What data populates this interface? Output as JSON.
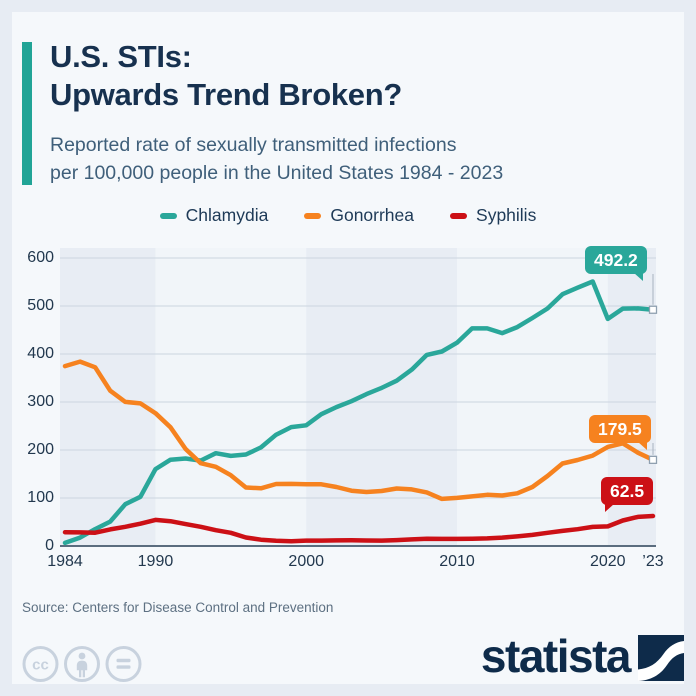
{
  "header": {
    "title_line1": "U.S. STIs:",
    "title_line2": "Upwards Trend Broken?",
    "subtitle_line1": "Reported rate of sexually transmitted infections",
    "subtitle_line2": "per 100,000 people in the United States 1984 - 2023"
  },
  "legend": [
    {
      "label": "Chlamydia",
      "color": "#2aa79a"
    },
    {
      "label": "Gonorrhea",
      "color": "#f6821f"
    },
    {
      "label": "Syphilis",
      "color": "#cc1016"
    }
  ],
  "chart_data": {
    "type": "line",
    "unit": "reported cases per 100,000 people",
    "x": [
      1984,
      1985,
      1986,
      1987,
      1988,
      1989,
      1990,
      1991,
      1992,
      1993,
      1994,
      1995,
      1996,
      1997,
      1998,
      1999,
      2000,
      2001,
      2002,
      2003,
      2004,
      2005,
      2006,
      2007,
      2008,
      2009,
      2010,
      2011,
      2012,
      2013,
      2014,
      2015,
      2016,
      2017,
      2018,
      2019,
      2020,
      2021,
      2022,
      2023
    ],
    "series": [
      {
        "name": "Chlamydia",
        "color": "#2aa79a",
        "end_label": "492.2",
        "values": [
          6.5,
          17.4,
          35.2,
          50.8,
          87.1,
          102.5,
          160.2,
          179.7,
          182.3,
          178.0,
          193.4,
          187.8,
          190.6,
          205.5,
          231.8,
          247.7,
          251.4,
          274.5,
          289.4,
          301.7,
          316.5,
          329.4,
          344.3,
          367.5,
          398.1,
          405.3,
          423.6,
          453.4,
          453.3,
          443.5,
          456.1,
          475.0,
          494.7,
          524.6,
          538.1,
          551.0,
          473.1,
          494.6,
          495.0,
          492.2
        ]
      },
      {
        "name": "Gonorrhea",
        "color": "#f6821f",
        "end_label": "179.5",
        "values": [
          374.8,
          384.2,
          372.3,
          323.5,
          300.3,
          297.1,
          276.6,
          247.2,
          202.0,
          172.4,
          165.1,
          147.5,
          121.8,
          120.2,
          129.2,
          129.3,
          128.7,
          128.5,
          123.0,
          115.2,
          112.4,
          114.6,
          119.7,
          118.0,
          111.6,
          98.1,
          100.2,
          103.3,
          106.7,
          105.3,
          109.8,
          123.0,
          145.8,
          171.9,
          179.1,
          188.4,
          206.5,
          214.0,
          194.4,
          179.5
        ]
      },
      {
        "name": "Syphilis",
        "color": "#cc1016",
        "end_label": "62.5",
        "values": [
          28.8,
          28.4,
          27.7,
          34.5,
          40.1,
          46.4,
          54.3,
          51.6,
          45.6,
          40.1,
          32.9,
          27.5,
          17.8,
          13.1,
          10.9,
          9.9,
          11.2,
          11.3,
          11.6,
          11.8,
          11.5,
          11.2,
          12.3,
          13.7,
          15.3,
          14.7,
          14.8,
          14.9,
          15.9,
          17.5,
          19.9,
          23.2,
          27.4,
          31.4,
          35.0,
          39.7,
          40.8,
          53.2,
          60.7,
          62.5
        ]
      }
    ],
    "ylim": [
      0,
      600
    ],
    "y_ticks": [
      0,
      100,
      200,
      300,
      400,
      500,
      600
    ],
    "x_ticks": [
      {
        "year": 1984,
        "label": "1984"
      },
      {
        "year": 1990,
        "label": "1990"
      },
      {
        "year": 2000,
        "label": "2000"
      },
      {
        "year": 2010,
        "label": "2010"
      },
      {
        "year": 2020,
        "label": "2020"
      },
      {
        "year": 2023,
        "label": "’23"
      }
    ],
    "grid": "horizontal",
    "legend_position": "top",
    "background_decade_bands": [
      1984,
      1990,
      2000,
      2010,
      2020,
      2023
    ]
  },
  "footer": {
    "source": "Source: Centers for Disease Control and Prevention",
    "brand": "statista",
    "license_icons": [
      "cc-icon",
      "attribution-person-icon",
      "equals-nd-icon"
    ]
  },
  "colors": {
    "frame_bg": "#e7ecf3",
    "card_bg": "#f5f8fb",
    "band_dark": "#e8edf4",
    "band_light": "#f1f5f9",
    "gridline": "#ccd5df",
    "axis_line": "#5a6c7e",
    "title_text": "#17314f",
    "subtitle_text": "#3f5f7a",
    "axis_text": "#22384e",
    "accent_teal": "#21a496",
    "brand_navy": "#0e2b4a",
    "license_gray": "#c8d2de",
    "connector": "#a9b4c1",
    "marker_border": "#8fa0b0"
  }
}
